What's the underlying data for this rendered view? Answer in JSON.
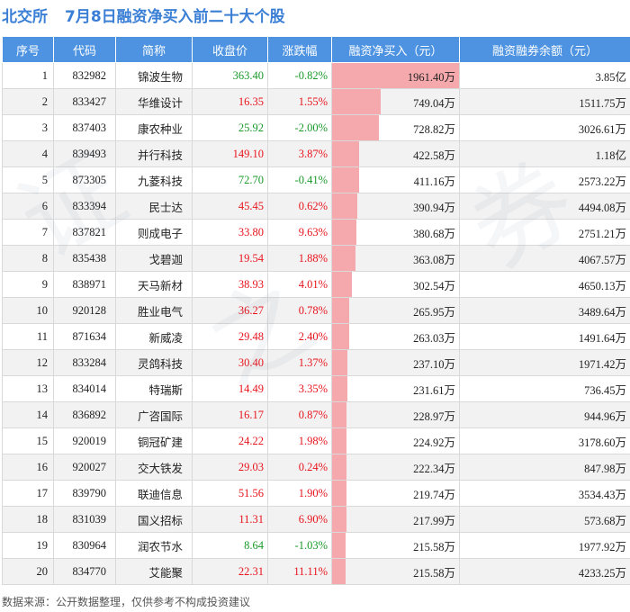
{
  "title": {
    "exchange": "北交所",
    "main": "7月8日融资净买入前二十大个股"
  },
  "columns": [
    "序号",
    "代码",
    "简称",
    "收盘价",
    "涨跌幅",
    "融资净买入（元）",
    "融资融券余额（元）"
  ],
  "rows": [
    {
      "idx": "1",
      "code": "832982",
      "name": "锦波生物",
      "price": "363.40",
      "chg": "-0.82%",
      "dir": "down",
      "buy": "1961.40万",
      "buy_value": 1961.4,
      "bal": "3.85亿"
    },
    {
      "idx": "2",
      "code": "833427",
      "name": "华维设计",
      "price": "16.35",
      "chg": "1.55%",
      "dir": "up",
      "buy": "749.04万",
      "buy_value": 749.04,
      "bal": "1511.75万"
    },
    {
      "idx": "3",
      "code": "837403",
      "name": "康农种业",
      "price": "25.92",
      "chg": "-2.00%",
      "dir": "down",
      "buy": "728.82万",
      "buy_value": 728.82,
      "bal": "3026.61万"
    },
    {
      "idx": "4",
      "code": "839493",
      "name": "并行科技",
      "price": "149.10",
      "chg": "3.87%",
      "dir": "up",
      "buy": "422.58万",
      "buy_value": 422.58,
      "bal": "1.18亿"
    },
    {
      "idx": "5",
      "code": "873305",
      "name": "九菱科技",
      "price": "72.70",
      "chg": "-0.41%",
      "dir": "down",
      "buy": "411.16万",
      "buy_value": 411.16,
      "bal": "2573.22万"
    },
    {
      "idx": "6",
      "code": "833394",
      "name": "民士达",
      "price": "45.45",
      "chg": "0.62%",
      "dir": "up",
      "buy": "390.94万",
      "buy_value": 390.94,
      "bal": "4494.08万"
    },
    {
      "idx": "7",
      "code": "837821",
      "name": "则成电子",
      "price": "33.80",
      "chg": "9.63%",
      "dir": "up",
      "buy": "380.68万",
      "buy_value": 380.68,
      "bal": "2751.21万"
    },
    {
      "idx": "8",
      "code": "835438",
      "name": "戈碧迦",
      "price": "19.54",
      "chg": "1.88%",
      "dir": "up",
      "buy": "363.08万",
      "buy_value": 363.08,
      "bal": "4067.57万"
    },
    {
      "idx": "9",
      "code": "838971",
      "name": "天马新材",
      "price": "38.93",
      "chg": "4.01%",
      "dir": "up",
      "buy": "302.54万",
      "buy_value": 302.54,
      "bal": "4650.13万"
    },
    {
      "idx": "10",
      "code": "920128",
      "name": "胜业电气",
      "price": "36.27",
      "chg": "0.78%",
      "dir": "up",
      "buy": "265.95万",
      "buy_value": 265.95,
      "bal": "3489.64万"
    },
    {
      "idx": "11",
      "code": "871634",
      "name": "新威凌",
      "price": "29.48",
      "chg": "2.40%",
      "dir": "up",
      "buy": "263.03万",
      "buy_value": 263.03,
      "bal": "1491.64万"
    },
    {
      "idx": "12",
      "code": "833284",
      "name": "灵鸽科技",
      "price": "30.40",
      "chg": "1.37%",
      "dir": "up",
      "buy": "237.10万",
      "buy_value": 237.1,
      "bal": "1971.42万"
    },
    {
      "idx": "13",
      "code": "834014",
      "name": "特瑞斯",
      "price": "14.49",
      "chg": "3.35%",
      "dir": "up",
      "buy": "231.61万",
      "buy_value": 231.61,
      "bal": "736.45万"
    },
    {
      "idx": "14",
      "code": "836892",
      "name": "广咨国际",
      "price": "16.17",
      "chg": "0.87%",
      "dir": "up",
      "buy": "228.97万",
      "buy_value": 228.97,
      "bal": "944.96万"
    },
    {
      "idx": "15",
      "code": "920019",
      "name": "铜冠矿建",
      "price": "24.22",
      "chg": "1.98%",
      "dir": "up",
      "buy": "224.92万",
      "buy_value": 224.92,
      "bal": "3178.60万"
    },
    {
      "idx": "16",
      "code": "920027",
      "name": "交大铁发",
      "price": "29.03",
      "chg": "0.24%",
      "dir": "up",
      "buy": "222.34万",
      "buy_value": 222.34,
      "bal": "847.98万"
    },
    {
      "idx": "17",
      "code": "839790",
      "name": "联迪信息",
      "price": "51.56",
      "chg": "1.90%",
      "dir": "up",
      "buy": "219.74万",
      "buy_value": 219.74,
      "bal": "3534.43万"
    },
    {
      "idx": "18",
      "code": "831039",
      "name": "国义招标",
      "price": "11.31",
      "chg": "6.90%",
      "dir": "up",
      "buy": "217.99万",
      "buy_value": 217.99,
      "bal": "573.68万"
    },
    {
      "idx": "19",
      "code": "830964",
      "name": "润农节水",
      "price": "8.64",
      "chg": "-1.03%",
      "dir": "down",
      "buy": "215.58万",
      "buy_value": 215.58,
      "bal": "1977.92万"
    },
    {
      "idx": "20",
      "code": "834770",
      "name": "艾能聚",
      "price": "22.31",
      "chg": "11.11%",
      "dir": "up",
      "buy": "215.58万",
      "buy_value": 215.58,
      "bal": "4233.25万"
    }
  ],
  "source": "数据来源：公开数据整理，仅供参考不构成投资建议",
  "colors": {
    "header": "#4d93e1",
    "title": "#3a7fd5",
    "up": "#e8141c",
    "down": "#1a9a2a",
    "bar": "#f5a9ad"
  }
}
